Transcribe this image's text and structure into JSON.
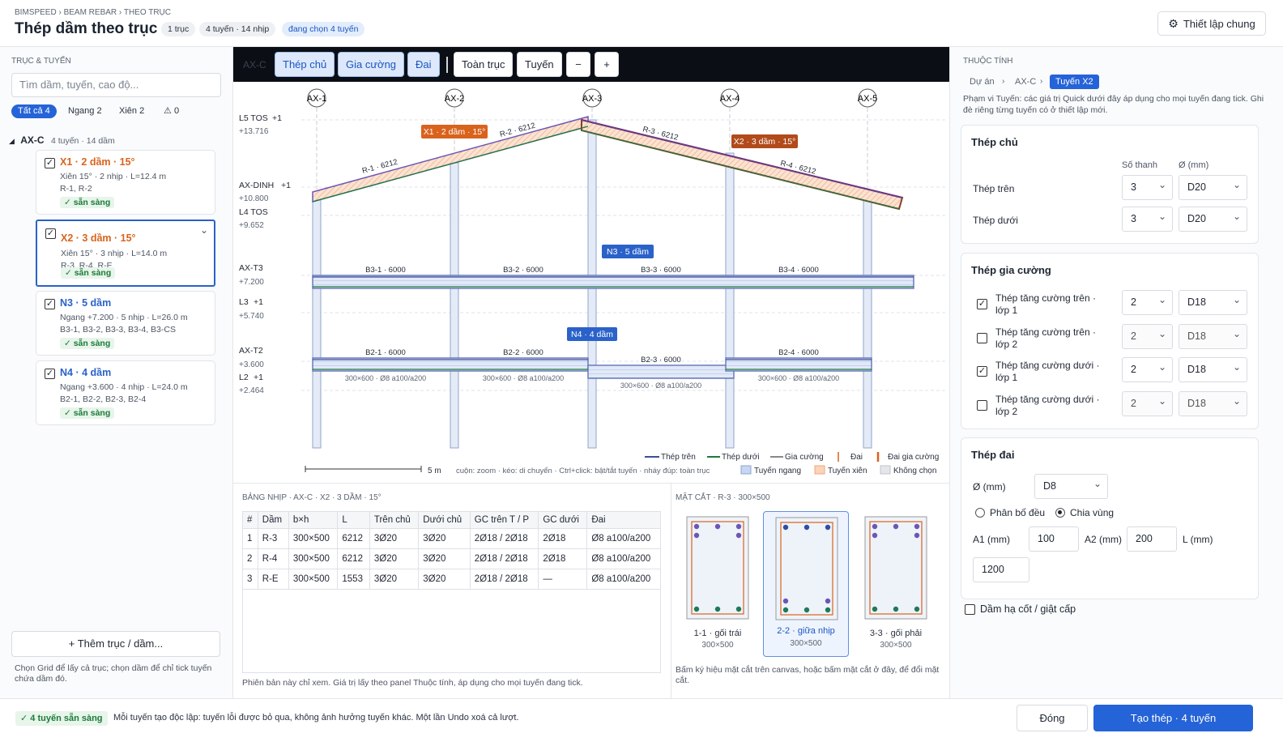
{
  "header": {
    "breadcrumb": "BIMSPEED › BEAM REBAR › THEO TRỤC",
    "title": "Thép dầm theo trục",
    "chip_axis": "1 trục",
    "chip_lines": "4 tuyến · 14 nhịp",
    "chip_selected": "đang chọn 4 tuyến",
    "settings_label": "Thiết lập chung"
  },
  "left": {
    "section_label": "TRỤC & TUYẾN",
    "search_placeholder": "Tìm dầm, tuyến, cao độ...",
    "filters": {
      "all": "Tất cả 4",
      "horizontal": "Ngang 2",
      "inclined": "Xiên 2",
      "warn": "0"
    },
    "group": {
      "name": "AX-C",
      "summary": "4 tuyến · 14 dầm"
    },
    "cards": [
      {
        "title": "X1 · 2 dầm · 15°",
        "line1": "Xiên 15° · 2 nhịp · L=12.4 m",
        "line2": "R-1, R-2",
        "status": "✓ sẵn sàng",
        "color": "#d9631d"
      },
      {
        "title": "X2 · 3 dầm · 15°",
        "line1": "Xiên 15° · 3 nhịp · L=14.0 m",
        "line2": "R-3, R-4, R-E",
        "status": "✓ sẵn sàng",
        "color": "#d9631d"
      },
      {
        "title": "N3 · 5 dầm",
        "line1": "Ngang +7.200 · 5 nhịp · L=26.0 m",
        "line2": "B3-1, B3-2, B3-3, B3-4, B3-CS",
        "status": "✓ sẵn sàng",
        "color": "#2a62c9"
      },
      {
        "title": "N4 · 4 dầm",
        "line1": "Ngang +3.600 · 4 nhịp · L=24.0 m",
        "line2": "B2-1, B2-2, B2-3, B2-4",
        "status": "✓ sẵn sàng",
        "color": "#2a62c9"
      }
    ],
    "add_button": "+ Thêm trục / dầm...",
    "hint": "Chọn Grid để lấy cả trục; chọn dầm để chỉ tick tuyến chứa dầm đó."
  },
  "toolbar": {
    "axis": "AX-C",
    "main": "Thép chủ",
    "reinf": "Gia cường",
    "stirrup": "Đai",
    "fit": "Toàn trục",
    "line": "Tuyến",
    "zoom_out": "−",
    "zoom_in": "+"
  },
  "drawing": {
    "axes": [
      "AX-1",
      "AX-2",
      "AX-3",
      "AX-4",
      "AX-5"
    ],
    "levels": [
      {
        "name": "L5 TOS",
        "plus": "+1",
        "elev": "+13.716"
      },
      {
        "name": "AX-DINH",
        "plus": "+1",
        "elev": "+10.800"
      },
      {
        "name": "L4 TOS",
        "plus": "",
        "elev": "+9.652"
      },
      {
        "name": "AX-T3",
        "plus": "",
        "elev": "+7.200"
      },
      {
        "name": "L3",
        "plus": "+1",
        "elev": "+5.740"
      },
      {
        "name": "AX-T2",
        "plus": "",
        "elev": "+3.600"
      },
      {
        "name": "L2",
        "plus": "+1",
        "elev": "+2.464"
      }
    ],
    "roof_labels": [
      "R-1 · 6212",
      "R-2 · 6212",
      "R-3 · 6212",
      "R-4 · 6212"
    ],
    "tags": {
      "x1": "X1 · 2 dầm · 15°",
      "x2": "X2 · 3 dầm · 15°",
      "n3": "N3 · 5 dầm",
      "n4": "N4 · 4 dầm"
    },
    "t3_beams": [
      "B3-1 · 6000",
      "B3-2 · 6000",
      "B3-3 · 6000",
      "B3-4 · 6000"
    ],
    "t2_beams": [
      "B2-1 · 6000",
      "B2-2 · 6000",
      "B2-3 · 6000",
      "B2-4 · 6000"
    ],
    "t2_sections": [
      "300×600 · Ø8 a100/a200",
      "300×600 · Ø8 a100/a200",
      "300×600 · Ø8 a100/a200",
      "300×600 · Ø8 a100/a200"
    ],
    "legend": {
      "top": "Thép trên",
      "bottom": "Thép dưới",
      "reinf": "Gia cường",
      "stirrup": "Đai",
      "stirrup_reinf": "Đai gia cường",
      "horiz": "Tuyến ngang",
      "incl": "Tuyến xiên",
      "none": "Không chọn"
    },
    "scale": "5 m",
    "help": "cuộn: zoom · kéo: di chuyển · Ctrl+click: bật/tắt tuyến · nháy đúp: toàn trục"
  },
  "span_table": {
    "title": "BẢNG NHỊP · AX-C · X2 · 3 dầm · 15°",
    "headers": [
      "#",
      "Dầm",
      "b×h",
      "L",
      "Trên chủ",
      "Dưới chủ",
      "GC trên T / P",
      "GC dưới",
      "Đai"
    ],
    "rows": [
      [
        "1",
        "R-3",
        "300×500",
        "6212",
        "3Ø20",
        "3Ø20",
        "2Ø18 / 2Ø18",
        "2Ø18",
        "Ø8 a100/a200"
      ],
      [
        "2",
        "R-4",
        "300×500",
        "6212",
        "3Ø20",
        "3Ø20",
        "2Ø18 / 2Ø18",
        "2Ø18",
        "Ø8 a100/a200"
      ],
      [
        "3",
        "R-E",
        "300×500",
        "1553",
        "3Ø20",
        "3Ø20",
        "2Ø18 / 2Ø18",
        "—",
        "Ø8 a100/a200"
      ]
    ],
    "note": "Phiên bản này chỉ xem. Giá trị lấy theo panel Thuộc tính, áp dụng cho mọi tuyến đang tick."
  },
  "section": {
    "title": "MẶT CẮT · R-3 · 300×500",
    "items": [
      {
        "name": "1-1 · gối trái",
        "dim": "300×500"
      },
      {
        "name": "2-2 · giữa nhịp",
        "dim": "300×500"
      },
      {
        "name": "3-3 · gối phải",
        "dim": "300×500"
      }
    ],
    "note": "Bấm ký hiệu mặt cắt trên canvas, hoặc bấm mặt cắt ở đây, để đổi mặt cắt."
  },
  "props": {
    "title": "THUỘC TÍNH",
    "crumbs": [
      "Dự án",
      "AX-C",
      "Tuyến X2"
    ],
    "desc": "Phạm vi Tuyến: các giá trị Quick dưới đây áp dụng cho mọi tuyến đang tick. Ghi đè riêng từng tuyến có ở thiết lập mới.",
    "main": {
      "title": "Thép chủ",
      "col_count": "Số thanh",
      "col_dia": "Ø (mm)",
      "top_label": "Thép trên",
      "top_count": "3",
      "top_dia": "D20",
      "bot_label": "Thép dưới",
      "bot_count": "3",
      "bot_dia": "D20"
    },
    "reinf": {
      "title": "Thép gia cường",
      "rows": [
        {
          "label": "Thép tăng cường trên · lớp 1",
          "count": "2",
          "dia": "D18",
          "checked": true
        },
        {
          "label": "Thép tăng cường trên · lớp 2",
          "count": "2",
          "dia": "D18",
          "checked": false
        },
        {
          "label": "Thép tăng cường dưới · lớp 1",
          "count": "2",
          "dia": "D18",
          "checked": true
        },
        {
          "label": "Thép tăng cường dưới · lớp 2",
          "count": "2",
          "dia": "D18",
          "checked": false
        }
      ]
    },
    "stirrup": {
      "title": "Thép đai",
      "dia_label": "Ø (mm)",
      "dia": "D8",
      "uniform": "Phân bố đều",
      "zoned": "Chia vùng",
      "a1_label": "A1 (mm)",
      "a1": "100",
      "a2_label": "A2 (mm)",
      "a2": "200",
      "l_label": "L (mm)",
      "l": "1200"
    },
    "drop": "Dầm hạ cốt / giật cấp"
  },
  "footer": {
    "ok": "✓ 4 tuyến sẵn sàng",
    "msg": "Mỗi tuyến tạo độc lập: tuyến lỗi được bỏ qua, không ảnh hưởng tuyến khác. Một lần Undo xoá cả lượt.",
    "close": "Đóng",
    "create": "Tạo thép · 4 tuyến"
  },
  "colors": {
    "accent": "#2563d8",
    "incline": "#d9631d",
    "horizontal": "#2a62c9",
    "ok": "#1c7a3a"
  }
}
